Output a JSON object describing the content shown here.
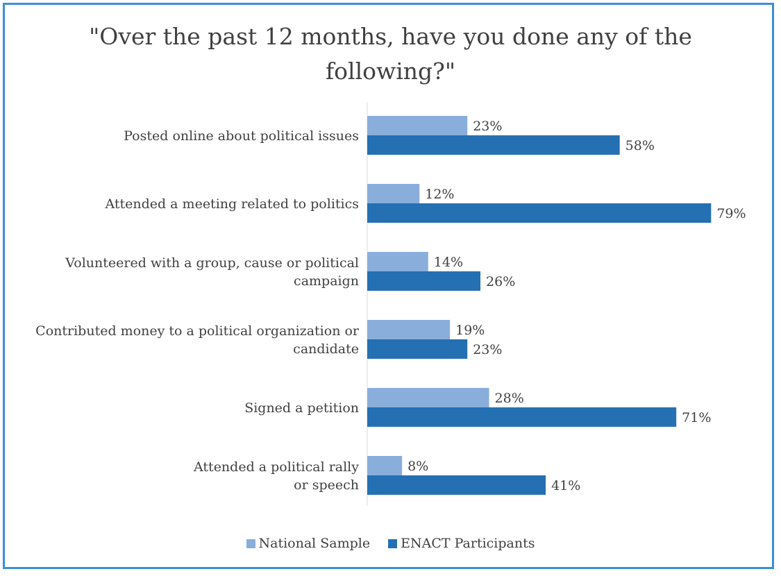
{
  "chart_data": {
    "type": "bar",
    "orientation": "horizontal",
    "title_lines": [
      "\"Over the past 12 months, have you done any of the",
      "following?\""
    ],
    "categories": [
      [
        "Posted online about political issues"
      ],
      [
        "Attended a meeting related to politics"
      ],
      [
        "Volunteered with a group, cause or political",
        "campaign"
      ],
      [
        "Contributed money to a political organization or",
        "candidate"
      ],
      [
        "Signed a petition"
      ],
      [
        "Attended a political rally",
        "or speech"
      ]
    ],
    "series": [
      {
        "name": "National Sample",
        "color": "#8aaedb",
        "values": [
          23,
          12,
          14,
          19,
          28,
          8
        ]
      },
      {
        "name": "ENACT Participants",
        "color": "#2470b3",
        "values": [
          58,
          79,
          26,
          23,
          71,
          41
        ]
      }
    ],
    "value_suffix": "%",
    "xlim": [
      0,
      100
    ],
    "grid": false,
    "legend_position": "bottom"
  }
}
